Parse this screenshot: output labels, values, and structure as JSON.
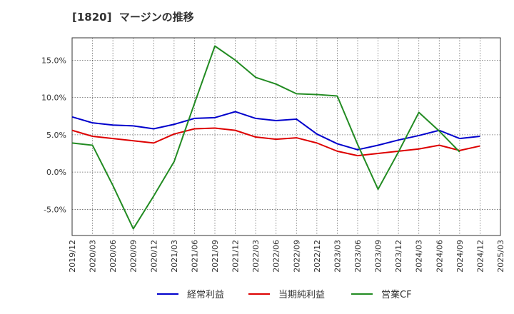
{
  "chart_data": {
    "type": "line",
    "title": "[1820]  マージンの推移",
    "x": [
      "2019/12",
      "2020/03",
      "2020/06",
      "2020/09",
      "2020/12",
      "2021/03",
      "2021/06",
      "2021/09",
      "2021/12",
      "2022/03",
      "2022/06",
      "2022/09",
      "2022/12",
      "2023/03",
      "2023/06",
      "2023/09",
      "2023/12",
      "2024/03",
      "2024/06",
      "2024/09",
      "2024/12",
      "2025/03"
    ],
    "ylim": [
      -8.5,
      18.0
    ],
    "yticks": [
      15,
      10,
      5,
      0,
      -5
    ],
    "ytick_labels": [
      "15.0%",
      "10.0%",
      "5.0%",
      "0.0%",
      "-5.0%"
    ],
    "grid": true,
    "legend_position": "bottom",
    "series": [
      {
        "name": "経常利益",
        "color": "#0000cc",
        "values": [
          7.4,
          6.6,
          6.3,
          6.2,
          5.8,
          6.4,
          7.2,
          7.3,
          8.1,
          7.2,
          6.9,
          7.1,
          5.1,
          3.8,
          3.0,
          3.6,
          4.3,
          4.9,
          5.6,
          4.5,
          4.8,
          null
        ]
      },
      {
        "name": "当期純利益",
        "color": "#dd0000",
        "values": [
          5.6,
          4.8,
          4.5,
          4.2,
          3.9,
          5.1,
          5.8,
          5.9,
          5.6,
          4.7,
          4.4,
          4.6,
          3.9,
          2.8,
          2.2,
          2.5,
          2.8,
          3.1,
          3.6,
          2.9,
          3.5,
          null
        ]
      },
      {
        "name": "営業CF",
        "color": "#228b22",
        "values": [
          3.9,
          3.6,
          -1.8,
          -7.6,
          -3.2,
          1.4,
          9.2,
          16.9,
          15.0,
          12.7,
          11.8,
          10.5,
          10.4,
          10.2,
          3.7,
          -2.3,
          2.7,
          8.0,
          5.5,
          2.7,
          null,
          null
        ]
      }
    ]
  }
}
